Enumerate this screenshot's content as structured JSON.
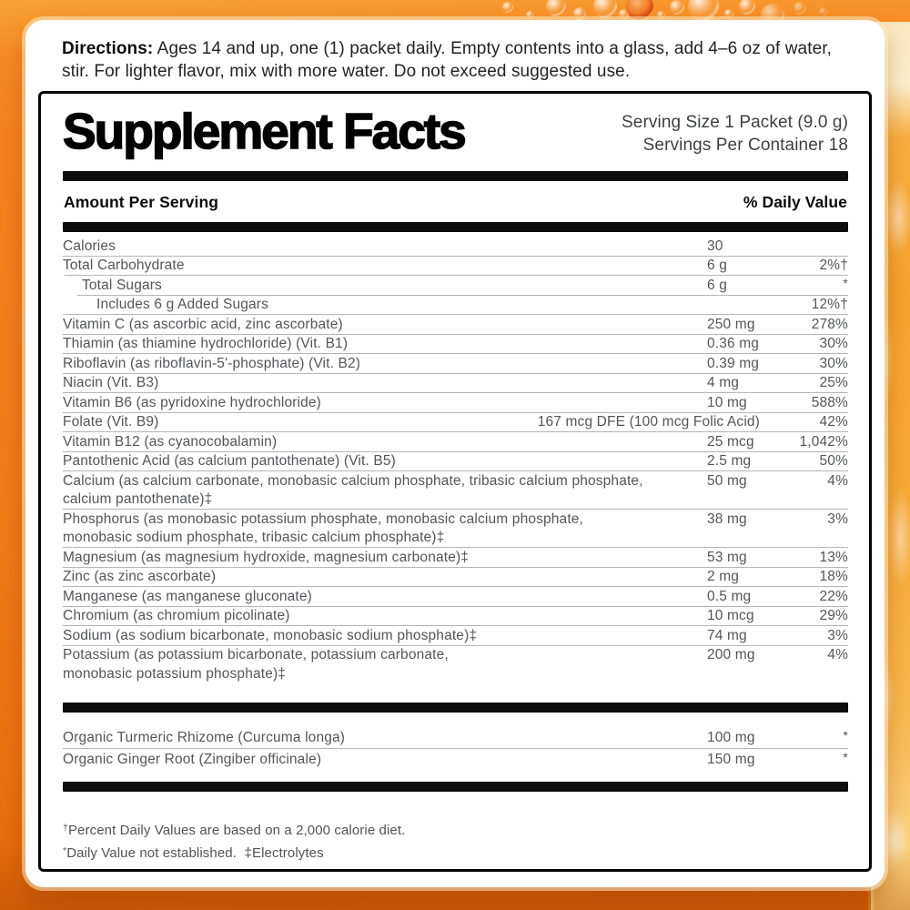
{
  "colors": {
    "background_orange": "#f5821f",
    "bar_black": "#0d0d0d",
    "body_text": "#54555a",
    "card_white": "#ffffff"
  },
  "directions": {
    "label": "Directions:",
    "text": " Ages 14 and up, one (1) packet daily. Empty contents into a glass, add 4–6 oz of water, stir. For lighter flavor, mix with more water. Do not exceed suggested use."
  },
  "panel": {
    "title": "Supplement Facts",
    "serving_size": "Serving Size 1 Packet (9.0 g)",
    "servings_per_container": "Servings Per Container 18",
    "col_left": "Amount Per Serving",
    "col_right": "% Daily Value",
    "rows": [
      {
        "name": "Calories",
        "amount": "30",
        "dv": ""
      },
      {
        "name": "Total Carbohydrate",
        "amount": "6 g",
        "dv": "2%†"
      },
      {
        "name": "Total Sugars",
        "amount": "6 g",
        "dv": "*",
        "indent": 1
      },
      {
        "name": "Includes 6 g Added Sugars",
        "amount": "",
        "dv": "12%†",
        "indent": 2
      },
      {
        "name": "Vitamin C (as ascorbic acid, zinc ascorbate)",
        "amount": "250 mg",
        "dv": "278%"
      },
      {
        "name": "Thiamin (as thiamine hydrochloride) (Vit. B1)",
        "amount": "0.36 mg",
        "dv": "30%"
      },
      {
        "name": "Riboflavin (as riboflavin-5'-phosphate) (Vit. B2)",
        "amount": "0.39 mg",
        "dv": "30%"
      },
      {
        "name": "Niacin (Vit. B3)",
        "amount": "4 mg",
        "dv": "25%"
      },
      {
        "name": "Vitamin B6 (as pyridoxine hydrochloride)",
        "amount": "10 mg",
        "dv": "588%"
      },
      {
        "name": "Folate (Vit. B9)",
        "amount": "167 mcg DFE (100 mcg Folic Acid)",
        "dv": "42%"
      },
      {
        "name": "Vitamin B12 (as cyanocobalamin)",
        "amount": "25 mcg",
        "dv": "1,042%"
      },
      {
        "name": "Pantothenic Acid (as calcium pantothenate) (Vit. B5)",
        "amount": "2.5 mg",
        "dv": "50%"
      },
      {
        "name": "Calcium (as calcium carbonate, monobasic calcium phosphate, tribasic calcium phosphate,",
        "name2": "calcium pantothenate)‡",
        "amount": "50 mg",
        "dv": "4%"
      },
      {
        "name": "Phosphorus (as monobasic potassium phosphate, monobasic calcium phosphate,",
        "name2": "monobasic sodium phosphate, tribasic calcium phosphate)‡",
        "amount": "38 mg",
        "dv": "3%"
      },
      {
        "name": "Magnesium (as magnesium hydroxide, magnesium carbonate)‡",
        "amount": "53 mg",
        "dv": "13%"
      },
      {
        "name": "Zinc (as zinc ascorbate)",
        "amount": "2 mg",
        "dv": "18%"
      },
      {
        "name": "Manganese (as manganese gluconate)",
        "amount": "0.5 mg",
        "dv": "22%"
      },
      {
        "name": "Chromium (as chromium picolinate)",
        "amount": "10 mcg",
        "dv": "29%"
      },
      {
        "name": "Sodium (as sodium bicarbonate, monobasic sodium phosphate)‡",
        "amount": "74 mg",
        "dv": "3%"
      },
      {
        "name": "Potassium (as potassium bicarbonate, potassium carbonate,",
        "name2": "monobasic potassium phosphate)‡",
        "amount": "200 mg",
        "dv": "4%"
      }
    ],
    "botanicals": [
      {
        "name": "Organic Turmeric Rhizome (Curcuma longa)",
        "amount": "100 mg",
        "dv": "*"
      },
      {
        "name": "Organic Ginger Root (Zingiber officinale)",
        "amount": "150 mg",
        "dv": "*"
      }
    ],
    "footnotes": [
      {
        "sym": "†",
        "text": "Percent Daily Values are based on a 2,000 calorie diet."
      },
      {
        "sym": "*",
        "text": "Daily Value not established.  ‡Electrolytes"
      }
    ]
  }
}
